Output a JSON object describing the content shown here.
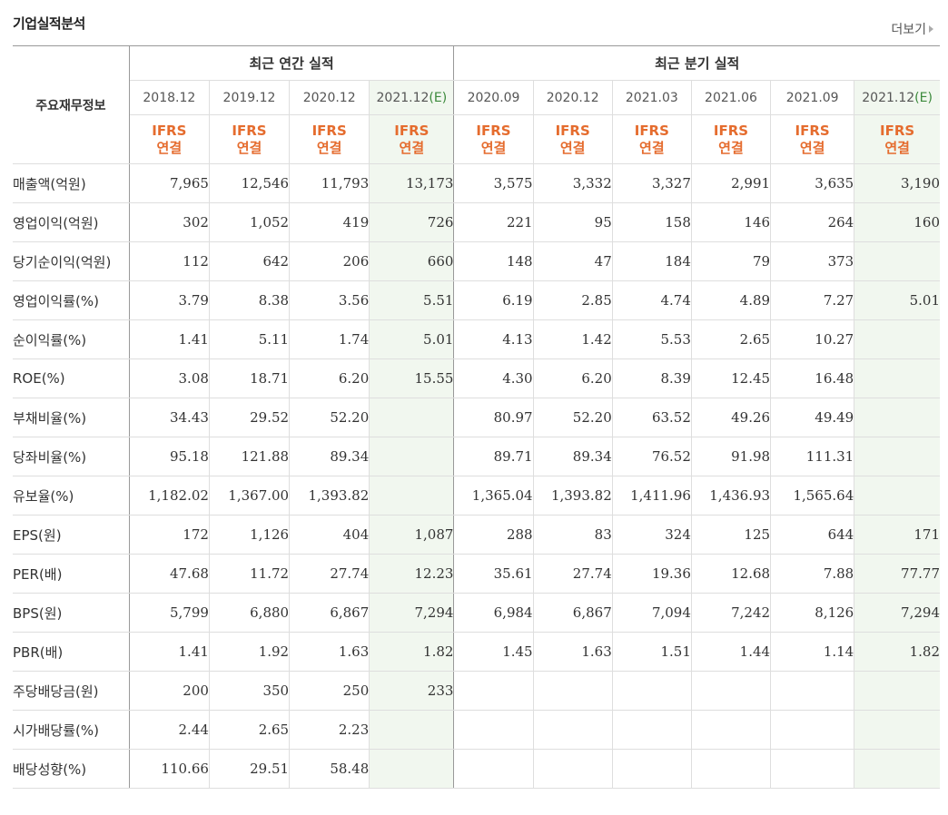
{
  "section": {
    "title": "기업실적분석",
    "more_label": "더보기"
  },
  "table": {
    "main_label": "주요재무정보",
    "group_annual": "최근 연간 실적",
    "group_quarter": "최근 분기 실적",
    "periods": [
      {
        "label": "2018.12",
        "est": ""
      },
      {
        "label": "2019.12",
        "est": ""
      },
      {
        "label": "2020.12",
        "est": ""
      },
      {
        "label": "2021.12",
        "est": "(E)"
      },
      {
        "label": "2020.09",
        "est": ""
      },
      {
        "label": "2020.12",
        "est": ""
      },
      {
        "label": "2021.03",
        "est": ""
      },
      {
        "label": "2021.06",
        "est": ""
      },
      {
        "label": "2021.09",
        "est": ""
      },
      {
        "label": "2021.12",
        "est": "(E)"
      }
    ],
    "ifrs": {
      "line1": "IFRS",
      "line2": "연결"
    },
    "rows": [
      {
        "label": "매출액(억원)",
        "values": [
          "7,965",
          "12,546",
          "11,793",
          "13,173",
          "3,575",
          "3,332",
          "3,327",
          "2,991",
          "3,635",
          "3,190"
        ]
      },
      {
        "label": "영업이익(억원)",
        "values": [
          "302",
          "1,052",
          "419",
          "726",
          "221",
          "95",
          "158",
          "146",
          "264",
          "160"
        ]
      },
      {
        "label": "당기순이익(억원)",
        "values": [
          "112",
          "642",
          "206",
          "660",
          "148",
          "47",
          "184",
          "79",
          "373",
          ""
        ]
      },
      {
        "label": "영업이익률(%)",
        "values": [
          "3.79",
          "8.38",
          "3.56",
          "5.51",
          "6.19",
          "2.85",
          "4.74",
          "4.89",
          "7.27",
          "5.01"
        ]
      },
      {
        "label": "순이익률(%)",
        "values": [
          "1.41",
          "5.11",
          "1.74",
          "5.01",
          "4.13",
          "1.42",
          "5.53",
          "2.65",
          "10.27",
          ""
        ]
      },
      {
        "label": "ROE(%)",
        "values": [
          "3.08",
          "18.71",
          "6.20",
          "15.55",
          "4.30",
          "6.20",
          "8.39",
          "12.45",
          "16.48",
          ""
        ]
      },
      {
        "label": "부채비율(%)",
        "values": [
          "34.43",
          "29.52",
          "52.20",
          "",
          "80.97",
          "52.20",
          "63.52",
          "49.26",
          "49.49",
          ""
        ]
      },
      {
        "label": "당좌비율(%)",
        "values": [
          "95.18",
          "121.88",
          "89.34",
          "",
          "89.71",
          "89.34",
          "76.52",
          "91.98",
          "111.31",
          ""
        ]
      },
      {
        "label": "유보율(%)",
        "values": [
          "1,182.02",
          "1,367.00",
          "1,393.82",
          "",
          "1,365.04",
          "1,393.82",
          "1,411.96",
          "1,436.93",
          "1,565.64",
          ""
        ]
      },
      {
        "label": "EPS(원)",
        "values": [
          "172",
          "1,126",
          "404",
          "1,087",
          "288",
          "83",
          "324",
          "125",
          "644",
          "171"
        ]
      },
      {
        "label": "PER(배)",
        "values": [
          "47.68",
          "11.72",
          "27.74",
          "12.23",
          "35.61",
          "27.74",
          "19.36",
          "12.68",
          "7.88",
          "77.77"
        ]
      },
      {
        "label": "BPS(원)",
        "values": [
          "5,799",
          "6,880",
          "6,867",
          "7,294",
          "6,984",
          "6,867",
          "7,094",
          "7,242",
          "8,126",
          "7,294"
        ]
      },
      {
        "label": "PBR(배)",
        "values": [
          "1.41",
          "1.92",
          "1.63",
          "1.82",
          "1.45",
          "1.63",
          "1.51",
          "1.44",
          "1.14",
          "1.82"
        ]
      },
      {
        "label": "주당배당금(원)",
        "values": [
          "200",
          "350",
          "250",
          "233",
          "",
          "",
          "",
          "",
          "",
          ""
        ]
      },
      {
        "label": "시가배당률(%)",
        "values": [
          "2.44",
          "2.65",
          "2.23",
          "",
          "",
          "",
          "",
          "",
          "",
          ""
        ]
      },
      {
        "label": "배당성향(%)",
        "values": [
          "110.66",
          "29.51",
          "58.48",
          "",
          "",
          "",
          "",
          "",
          "",
          ""
        ]
      }
    ]
  }
}
